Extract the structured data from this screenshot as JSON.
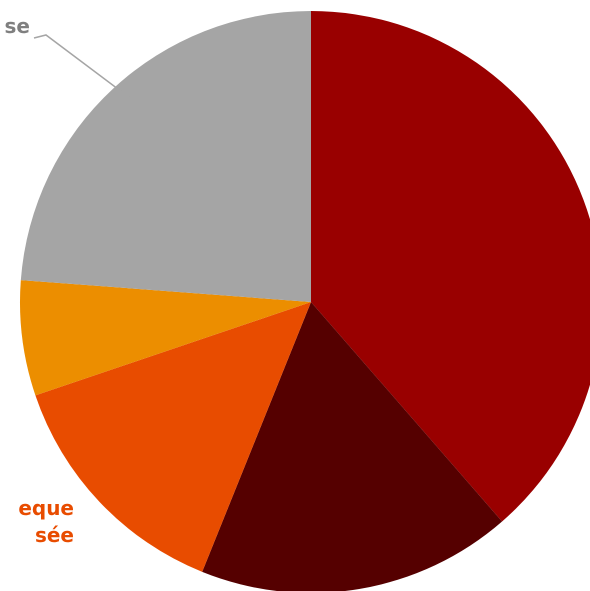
{
  "chart_data": {
    "type": "pie",
    "title": "",
    "start_angle_deg": 0,
    "direction": "clockwise",
    "slices": [
      {
        "value": 38.6,
        "color": "#990000",
        "label": "",
        "label_color": ""
      },
      {
        "value": 17.5,
        "color": "#550000",
        "label": "",
        "label_color": ""
      },
      {
        "value": 13.7,
        "color": "#E84C00",
        "label": "eque\nsée",
        "label_color": "#E84C00"
      },
      {
        "value": 6.4,
        "color": "#EC8E00",
        "label": "",
        "label_color": ""
      },
      {
        "value": 23.8,
        "color": "#A5A5A5",
        "label": "se",
        "label_color": "#7F7F7F"
      }
    ]
  }
}
